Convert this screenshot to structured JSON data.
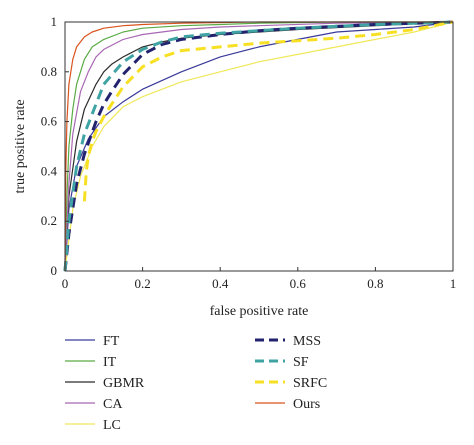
{
  "chart_data": {
    "type": "line",
    "title": "",
    "xlabel": "false positive rate",
    "ylabel": "true positive rate",
    "xlim": [
      0,
      1
    ],
    "ylim": [
      0,
      1
    ],
    "xticks": [
      0,
      0.2,
      0.4,
      0.6,
      0.8,
      1
    ],
    "yticks": [
      0,
      0.2,
      0.4,
      0.6,
      0.8,
      1
    ],
    "xtick_labels": [
      "0",
      "0.2",
      "0.4",
      "0.6",
      "0.8",
      "1"
    ],
    "ytick_labels": [
      "0",
      "0.2",
      "0.4",
      "0.6",
      "0.8",
      "1"
    ],
    "grid": false,
    "legend_position": "below",
    "series": [
      {
        "name": "FT",
        "color": "#3a3a9a",
        "style": "solid",
        "x": [
          0,
          0.01,
          0.03,
          0.06,
          0.1,
          0.15,
          0.2,
          0.3,
          0.4,
          0.5,
          0.6,
          0.7,
          0.8,
          0.9,
          1
        ],
        "y": [
          0,
          0.25,
          0.42,
          0.53,
          0.62,
          0.68,
          0.73,
          0.8,
          0.86,
          0.9,
          0.93,
          0.96,
          0.97,
          0.98,
          1
        ]
      },
      {
        "name": "IT",
        "color": "#5aaa45",
        "style": "solid",
        "x": [
          0,
          0.005,
          0.01,
          0.02,
          0.03,
          0.05,
          0.07,
          0.1,
          0.15,
          0.2,
          0.3,
          0.4,
          0.5,
          0.7,
          1
        ],
        "y": [
          0,
          0.3,
          0.5,
          0.65,
          0.75,
          0.85,
          0.9,
          0.93,
          0.96,
          0.975,
          0.985,
          0.99,
          0.995,
          1,
          1
        ]
      },
      {
        "name": "GBMR",
        "color": "#2b2b2b",
        "style": "solid",
        "x": [
          0,
          0.01,
          0.03,
          0.05,
          0.08,
          0.1,
          0.12,
          0.15,
          0.2,
          0.25,
          0.3,
          0.4,
          0.5,
          0.6,
          0.8,
          1
        ],
        "y": [
          0,
          0.3,
          0.52,
          0.65,
          0.75,
          0.8,
          0.83,
          0.86,
          0.9,
          0.92,
          0.935,
          0.95,
          0.96,
          0.97,
          0.985,
          1
        ]
      },
      {
        "name": "CA",
        "color": "#a867b3",
        "style": "solid",
        "x": [
          0,
          0.01,
          0.02,
          0.04,
          0.06,
          0.08,
          0.1,
          0.15,
          0.2,
          0.3,
          0.4,
          0.5,
          0.7,
          1
        ],
        "y": [
          0,
          0.35,
          0.55,
          0.72,
          0.8,
          0.86,
          0.89,
          0.93,
          0.95,
          0.97,
          0.98,
          0.985,
          0.995,
          1
        ]
      },
      {
        "name": "LC",
        "color": "#f0e85a",
        "style": "solid",
        "x": [
          0,
          0.02,
          0.04,
          0.07,
          0.1,
          0.15,
          0.2,
          0.3,
          0.4,
          0.5,
          0.6,
          0.7,
          0.8,
          0.9,
          1
        ],
        "y": [
          0,
          0.25,
          0.38,
          0.5,
          0.58,
          0.66,
          0.7,
          0.76,
          0.8,
          0.84,
          0.87,
          0.9,
          0.93,
          0.96,
          1
        ]
      },
      {
        "name": "MSS",
        "color": "#22226e",
        "style": "dash",
        "x": [
          0,
          0.01,
          0.03,
          0.05,
          0.08,
          0.1,
          0.12,
          0.15,
          0.2,
          0.25,
          0.3,
          0.4,
          0.5,
          0.6,
          0.8,
          1
        ],
        "y": [
          0,
          0.15,
          0.35,
          0.47,
          0.6,
          0.67,
          0.72,
          0.79,
          0.87,
          0.91,
          0.93,
          0.95,
          0.965,
          0.975,
          0.99,
          1
        ]
      },
      {
        "name": "SF",
        "color": "#3fa3a3",
        "style": "dash",
        "x": [
          0,
          0.01,
          0.03,
          0.05,
          0.08,
          0.1,
          0.15,
          0.2,
          0.25,
          0.3,
          0.4,
          0.5,
          0.6,
          0.8,
          1
        ],
        "y": [
          0,
          0.2,
          0.42,
          0.55,
          0.67,
          0.75,
          0.84,
          0.89,
          0.92,
          0.94,
          0.955,
          0.965,
          0.975,
          0.99,
          1
        ]
      },
      {
        "name": "SRFC",
        "color": "#f7e023",
        "style": "dash",
        "x": [
          0.05,
          0.055,
          0.06,
          0.07,
          0.08,
          0.1,
          0.12,
          0.15,
          0.2,
          0.25,
          0.3,
          0.4,
          0.5,
          0.6,
          0.7,
          0.8,
          0.9,
          0.95,
          1
        ],
        "y": [
          0.28,
          0.4,
          0.46,
          0.52,
          0.56,
          0.62,
          0.67,
          0.74,
          0.82,
          0.86,
          0.885,
          0.9,
          0.915,
          0.925,
          0.935,
          0.95,
          0.97,
          0.985,
          1
        ]
      },
      {
        "name": "Ours",
        "color": "#d9541e",
        "style": "solid",
        "x": [
          0,
          0.002,
          0.005,
          0.01,
          0.02,
          0.03,
          0.05,
          0.07,
          0.1,
          0.15,
          0.2,
          0.3,
          0.5,
          1
        ],
        "y": [
          0,
          0.4,
          0.6,
          0.75,
          0.85,
          0.9,
          0.94,
          0.96,
          0.975,
          0.985,
          0.99,
          0.995,
          1,
          1
        ]
      }
    ]
  }
}
